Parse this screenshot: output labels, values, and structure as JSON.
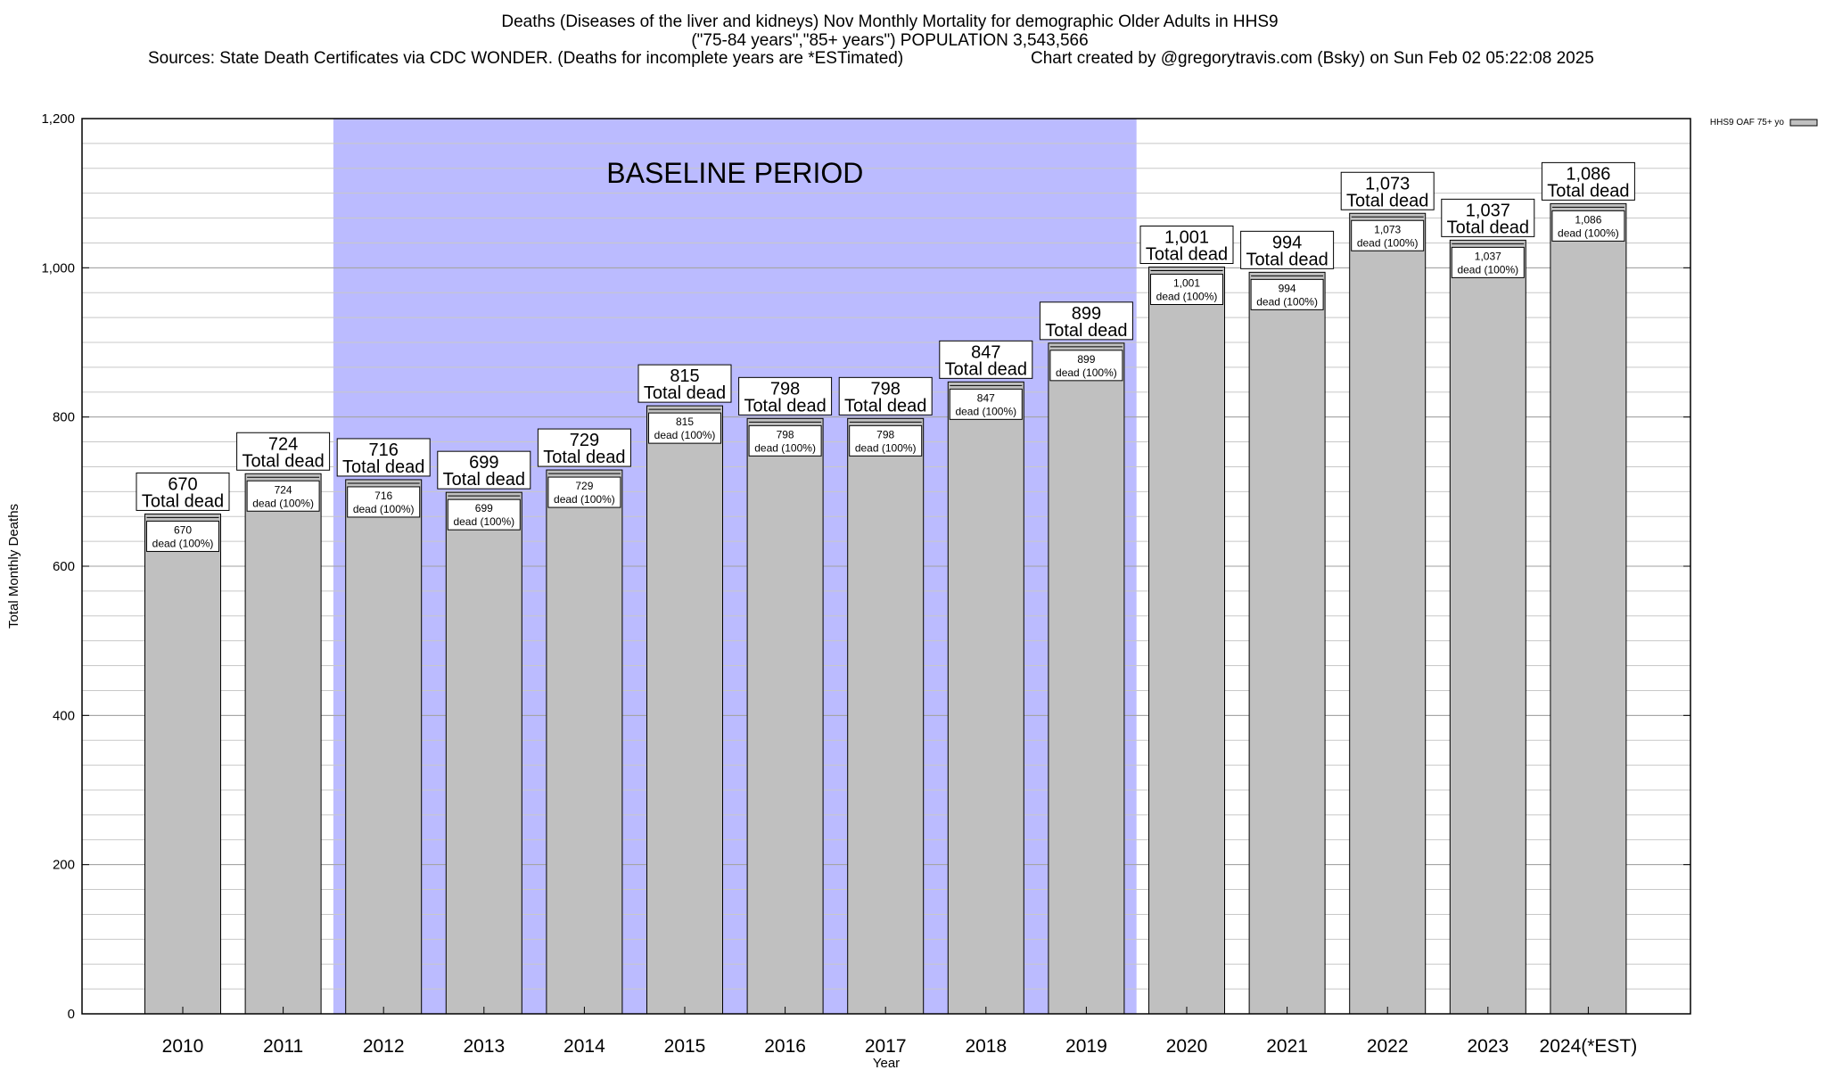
{
  "chart_data": {
    "type": "bar",
    "title_lines": [
      "Deaths (Diseases of the liver and kidneys) Nov Monthly Mortality for demographic Older Adults in HHS9",
      "(\"75-84 years\",\"85+ years\") POPULATION 3,543,566"
    ],
    "source_note": "Sources: State Death Certificates via CDC WONDER. (Deaths for incomplete years are *ESTimated)",
    "credit_note": "Chart created by @gregorytravis.com (Bsky) on Sun Feb 02 05:22:08 2025",
    "xlabel": "Year",
    "ylabel": "Total Monthly Deaths",
    "ylim": [
      0,
      1200
    ],
    "y_ticks": [
      0,
      200,
      400,
      600,
      800,
      1000,
      1200
    ],
    "y_tick_labels": [
      "0",
      "200",
      "400",
      "600",
      "800",
      "1,000",
      "1,200"
    ],
    "categories": [
      "2010",
      "2011",
      "2012",
      "2013",
      "2014",
      "2015",
      "2016",
      "2017",
      "2018",
      "2019",
      "2020",
      "2021",
      "2022",
      "2023",
      "2024(*EST)"
    ],
    "series": [
      {
        "name": "HHS9 OAF 75+ yo",
        "values": [
          670,
          724,
          716,
          699,
          729,
          815,
          798,
          798,
          847,
          899,
          1001,
          994,
          1073,
          1037,
          1086
        ],
        "value_labels": [
          "670",
          "724",
          "716",
          "699",
          "729",
          "815",
          "798",
          "798",
          "847",
          "899",
          "1,001",
          "994",
          "1,073",
          "1,037",
          "1,086"
        ]
      }
    ],
    "total_label_suffix": "Total dead",
    "inner_label_suffix": "dead (100%)",
    "baseline": {
      "label": "BASELINE PERIOD",
      "start_category": "2012",
      "end_category": "2019",
      "color": "#bbbbff"
    },
    "legend_position": "top-right",
    "grid": true,
    "bar_color": "#c0c0c0"
  }
}
